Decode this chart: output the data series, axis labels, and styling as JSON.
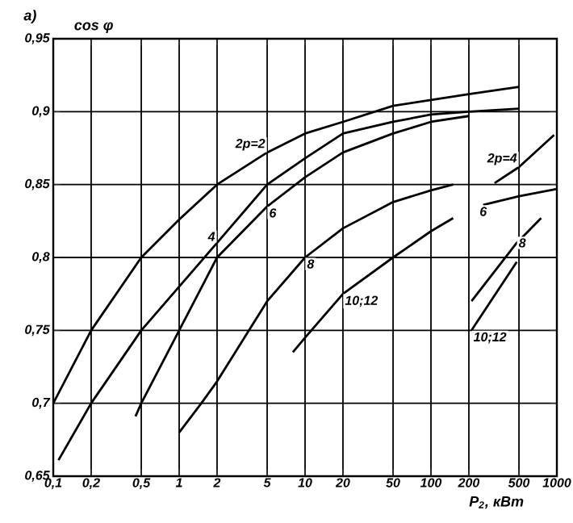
{
  "chart_data": {
    "type": "line",
    "title": "а)",
    "ylabel": "cos φ",
    "xlabel": "P$_{2}$, кВт",
    "log": "x",
    "grid": true,
    "xlim": [
      0.1,
      1000
    ],
    "ylim": [
      0.65,
      0.95
    ],
    "xticks": [
      {
        "value": 0.1,
        "label": "0,1"
      },
      {
        "value": 0.2,
        "label": "0,2"
      },
      {
        "value": 0.5,
        "label": "0,5"
      },
      1,
      2,
      5,
      10,
      20,
      50,
      100,
      200,
      500,
      1000
    ],
    "yticks": [
      {
        "value": 0.65,
        "label": "0,65"
      },
      {
        "value": 0.7,
        "label": "0,7"
      },
      {
        "value": 0.75,
        "label": "0,75"
      },
      {
        "value": 0.8,
        "label": "0,8"
      },
      {
        "value": 0.85,
        "label": "0,85"
      },
      {
        "value": 0.9,
        "label": "0,9"
      },
      {
        "value": 0.95,
        "label": "0,95"
      }
    ],
    "series": [
      {
        "name": "2p=2",
        "color": "#000000",
        "x": [
          0.1,
          0.2,
          0.5,
          1,
          2,
          5,
          10,
          20,
          50,
          100,
          200,
          500
        ],
        "values": [
          0.7,
          0.75,
          0.8,
          0.826,
          0.85,
          0.872,
          0.885,
          0.893,
          0.904,
          0.908,
          0.912,
          0.917
        ]
      },
      {
        "name": "4",
        "color": "#000000",
        "x": [
          0.11,
          0.2,
          0.5,
          1,
          2,
          5,
          10,
          20,
          50,
          100,
          200,
          500
        ],
        "values": [
          0.661,
          0.7,
          0.75,
          0.78,
          0.81,
          0.85,
          0.868,
          0.885,
          0.893,
          0.898,
          0.9,
          0.902
        ]
      },
      {
        "name": "6",
        "color": "#000000",
        "x": [
          0.45,
          0.5,
          1,
          2,
          5,
          10,
          20,
          50,
          100,
          200
        ],
        "values": [
          0.691,
          0.7,
          0.75,
          0.8,
          0.835,
          0.855,
          0.872,
          0.885,
          0.893,
          0.897
        ]
      },
      {
        "name": "8",
        "color": "#000000",
        "x": [
          1,
          1.5,
          2,
          5,
          10,
          20,
          50,
          100,
          150
        ],
        "values": [
          0.68,
          0.7,
          0.715,
          0.77,
          0.8,
          0.82,
          0.838,
          0.846,
          0.85
        ]
      },
      {
        "name": "10;12",
        "color": "#000000",
        "x": [
          8,
          10,
          20,
          50,
          100,
          150
        ],
        "values": [
          0.735,
          0.745,
          0.775,
          0.8,
          0.818,
          0.827
        ]
      },
      {
        "name": "2p=4",
        "color": "#000000",
        "x": [
          320,
          500,
          950
        ],
        "values": [
          0.851,
          0.862,
          0.884
        ]
      },
      {
        "name": "6",
        "color": "#000000",
        "x": [
          260,
          500,
          1000
        ],
        "values": [
          0.836,
          0.842,
          0.847
        ]
      },
      {
        "name": "8",
        "color": "#000000",
        "x": [
          210,
          480,
          750
        ],
        "values": [
          0.77,
          0.81,
          0.827
        ]
      },
      {
        "name": "10;12",
        "color": "#000000",
        "x": [
          210,
          480
        ],
        "values": [
          0.75,
          0.797
        ]
      }
    ]
  }
}
